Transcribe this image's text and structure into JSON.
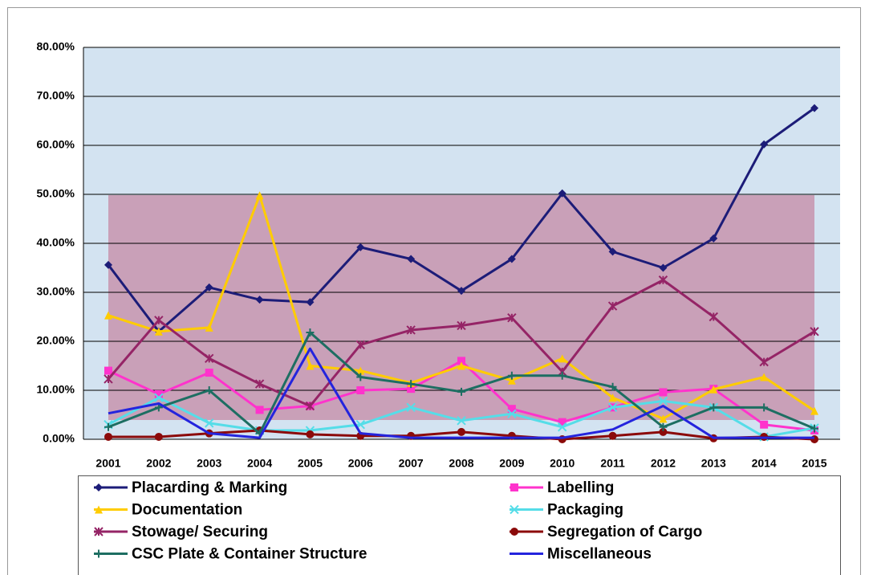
{
  "chart_data": {
    "type": "line",
    "categories": [
      "2001",
      "2002",
      "2003",
      "2004",
      "2005",
      "2006",
      "2007",
      "2008",
      "2009",
      "2010",
      "2011",
      "2012",
      "2013",
      "2014",
      "2015"
    ],
    "series": [
      {
        "name": "Placarding & Marking",
        "color": "#1c1c78",
        "marker": "diamond",
        "values": [
          35.6,
          22,
          31,
          28.5,
          28,
          39.2,
          36.8,
          30.3,
          36.8,
          50.2,
          38.3,
          35,
          41,
          60.2,
          67.6
        ]
      },
      {
        "name": "Labelling",
        "color": "#ff33cc",
        "marker": "square",
        "values": [
          14,
          9.2,
          13.6,
          6,
          6.8,
          10,
          10.3,
          16,
          6.2,
          3.5,
          6.5,
          9.6,
          10.3,
          3,
          1.8
        ]
      },
      {
        "name": "Documentation",
        "color": "#ffcc00",
        "marker": "triangle",
        "values": [
          25.3,
          22,
          22.8,
          49.8,
          15,
          14,
          11.5,
          15,
          12,
          16.5,
          8.5,
          4.2,
          10.2,
          12.7,
          5.8
        ]
      },
      {
        "name": "Packaging",
        "color": "#55dde8",
        "marker": "xmark",
        "values": [
          3,
          8.5,
          3.3,
          1.8,
          1.8,
          3,
          6.5,
          3.8,
          5.2,
          2.5,
          6.5,
          7.8,
          6.5,
          0.5,
          2.3
        ]
      },
      {
        "name": "Stowage/ Securing",
        "color": "#952466",
        "marker": "star",
        "values": [
          12.3,
          24.3,
          16.5,
          11.3,
          6.8,
          19.3,
          22.3,
          23.2,
          24.8,
          13.8,
          27.2,
          32.5,
          25,
          15.8,
          22
        ]
      },
      {
        "name": "Segregation of Cargo",
        "color": "#8b0a0a",
        "marker": "circle",
        "values": [
          0.5,
          0.5,
          1.2,
          1.8,
          1,
          0.7,
          0.7,
          1.5,
          0.7,
          0,
          0.7,
          1.5,
          0.2,
          0.5,
          0
        ]
      },
      {
        "name": "CSC Plate & Container Structure",
        "color": "#1d6e62",
        "marker": "plus",
        "values": [
          2.5,
          6.5,
          10,
          1.2,
          21.8,
          12.7,
          11.3,
          9.7,
          13,
          13,
          10.7,
          2.5,
          6.5,
          6.5,
          2.2
        ]
      },
      {
        "name": "Miscellaneous",
        "color": "#2424dd",
        "marker": "none",
        "values": [
          5.3,
          7.3,
          1.2,
          0.3,
          18.5,
          1.2,
          0.3,
          0.3,
          0.3,
          0.3,
          2,
          6.8,
          0.3,
          0.3,
          0.3
        ]
      }
    ],
    "ylim": [
      0,
      80
    ],
    "yticks": [
      {
        "value": 0,
        "label": "0.00%"
      },
      {
        "value": 10,
        "label": "10.00%"
      },
      {
        "value": 20,
        "label": "20.00%"
      },
      {
        "value": 30,
        "label": "30.00%"
      },
      {
        "value": 40,
        "label": "40.00%"
      },
      {
        "value": 50,
        "label": "50.00%"
      },
      {
        "value": 60,
        "label": "60.00%"
      },
      {
        "value": 70,
        "label": "70.00%"
      },
      {
        "value": 80,
        "label": "80.00%"
      }
    ],
    "grid": true,
    "legend": "bottom"
  }
}
